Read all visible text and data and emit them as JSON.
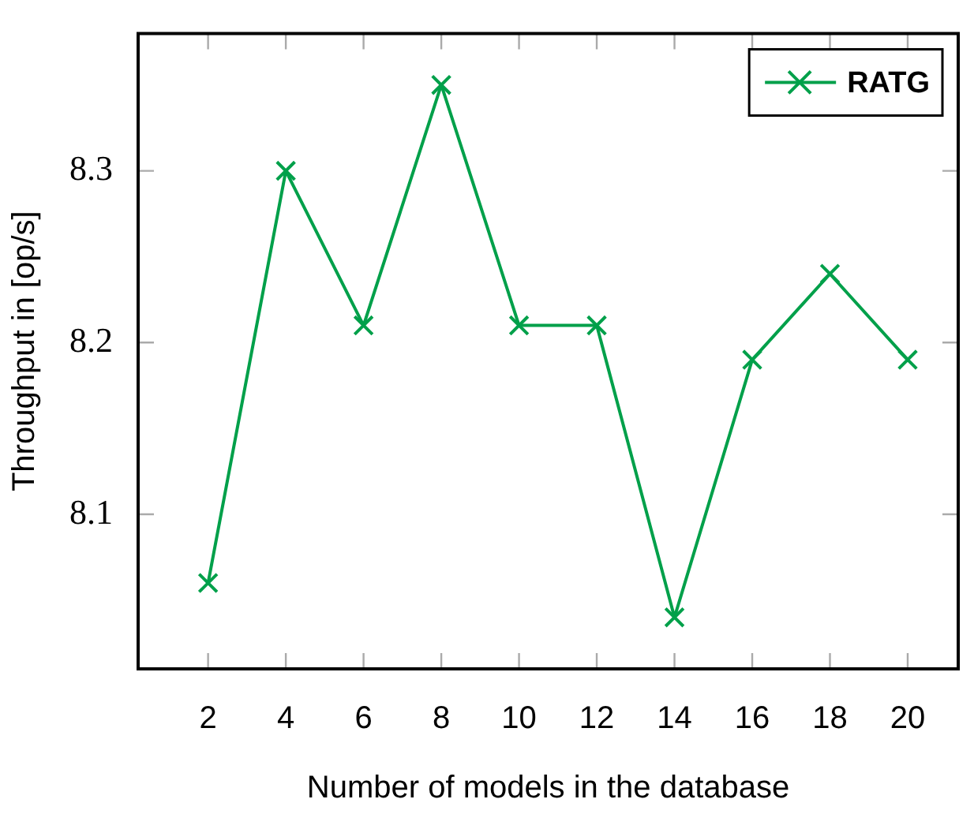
{
  "chart_data": {
    "type": "line",
    "xlabel": "Number of models in the database",
    "ylabel": "Throughput in [op/s]",
    "x": [
      2,
      4,
      6,
      8,
      10,
      12,
      14,
      16,
      18,
      20
    ],
    "series": [
      {
        "name": "RATG",
        "color": "#00a04a",
        "values": [
          8.06,
          8.3,
          8.21,
          8.35,
          8.21,
          8.21,
          8.04,
          8.19,
          8.24,
          8.19
        ]
      }
    ],
    "xlim": [
      0.2,
      21.3
    ],
    "xticks": [
      2,
      4,
      6,
      8,
      10,
      12,
      14,
      16,
      18,
      20
    ],
    "ylim": [
      8.01,
      8.38
    ],
    "yticks": [
      8.1,
      8.2,
      8.3
    ],
    "legend": "top right",
    "marker": "cross",
    "line_style": "solid"
  }
}
